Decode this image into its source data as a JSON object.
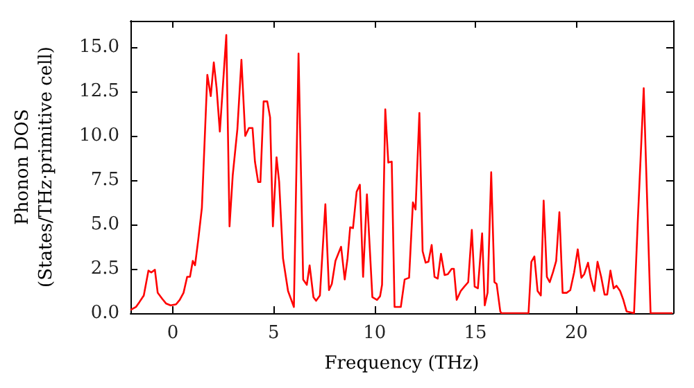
{
  "chart_data": {
    "type": "line",
    "xlabel": "Frequency (THz)",
    "ylabel": "Phonon DOS\n(States/THz·primitive cell)",
    "xlim": [
      -2.1,
      24.8
    ],
    "ylim": [
      0,
      16.5
    ],
    "xticks": [
      0,
      5,
      10,
      15,
      20
    ],
    "yticks": [
      {
        "value": 0,
        "label": "0.0"
      },
      {
        "value": 2.5,
        "label": "2.5"
      },
      {
        "value": 5,
        "label": "5.0"
      },
      {
        "value": 7.5,
        "label": "7.5"
      },
      {
        "value": 10,
        "label": "10.0"
      },
      {
        "value": 12.5,
        "label": "12.5"
      },
      {
        "value": 15,
        "label": "15.0"
      }
    ],
    "grid": false,
    "line_style": "solid",
    "marker": "none",
    "series": [
      {
        "color": "#ff0000",
        "x": [
          -2.1,
          -1.82,
          -1.66,
          -1.44,
          -1.21,
          -1.07,
          -0.89,
          -0.75,
          -0.52,
          -0.34,
          -0.11,
          0.16,
          0.34,
          0.53,
          0.71,
          0.85,
          0.99,
          1.1,
          1.26,
          1.44,
          1.71,
          1.88,
          2.03,
          2.17,
          2.33,
          2.65,
          2.81,
          2.97,
          3.2,
          3.4,
          3.59,
          3.77,
          3.95,
          4.07,
          4.23,
          4.34,
          4.5,
          4.68,
          4.82,
          4.96,
          5.14,
          5.27,
          5.46,
          5.71,
          6.0,
          6.23,
          6.46,
          6.64,
          6.78,
          6.97,
          7.1,
          7.29,
          7.56,
          7.74,
          7.88,
          8.06,
          8.34,
          8.52,
          8.66,
          8.79,
          8.93,
          9.11,
          9.27,
          9.43,
          9.62,
          9.89,
          10.12,
          10.27,
          10.37,
          10.53,
          10.68,
          10.85,
          10.99,
          11.3,
          11.49,
          11.71,
          11.9,
          12.03,
          12.22,
          12.38,
          12.53,
          12.67,
          12.83,
          12.97,
          13.13,
          13.29,
          13.47,
          13.63,
          13.82,
          13.93,
          14.07,
          14.27,
          14.45,
          14.64,
          14.82,
          14.96,
          15.12,
          15.33,
          15.46,
          15.6,
          15.78,
          15.94,
          16.05,
          16.23,
          16.28,
          17.63,
          17.77,
          17.92,
          18.08,
          18.24,
          18.38,
          18.54,
          18.68,
          18.84,
          19.0,
          19.16,
          19.32,
          19.52,
          19.7,
          19.89,
          20.07,
          20.25,
          20.39,
          20.58,
          20.71,
          20.89,
          21.05,
          21.23,
          21.4,
          21.53,
          21.69,
          21.85,
          21.99,
          22.17,
          22.33,
          22.49,
          22.86,
          23.04,
          23.34,
          23.68,
          24.77
        ],
        "values": [
          0.18,
          0.36,
          0.62,
          1.0,
          2.4,
          2.3,
          2.45,
          1.15,
          0.8,
          0.55,
          0.44,
          0.5,
          0.75,
          1.15,
          2.05,
          2.05,
          2.95,
          2.7,
          4.15,
          5.95,
          13.45,
          12.25,
          14.15,
          12.7,
          10.25,
          15.7,
          4.9,
          7.8,
          10.4,
          14.3,
          10.0,
          10.45,
          10.45,
          8.55,
          7.4,
          7.4,
          11.95,
          11.95,
          11.05,
          4.9,
          8.8,
          7.4,
          3.1,
          1.25,
          0.35,
          14.65,
          1.9,
          1.6,
          2.7,
          0.9,
          0.7,
          1.0,
          6.15,
          1.3,
          1.65,
          2.95,
          3.75,
          1.9,
          3.1,
          4.85,
          4.8,
          6.85,
          7.25,
          2.05,
          6.7,
          0.9,
          0.75,
          0.95,
          1.6,
          11.5,
          8.5,
          8.55,
          0.35,
          0.35,
          1.9,
          2.0,
          6.25,
          5.85,
          11.3,
          3.5,
          2.85,
          2.9,
          3.85,
          2.05,
          1.95,
          3.35,
          2.15,
          2.2,
          2.5,
          2.5,
          0.75,
          1.25,
          1.5,
          1.75,
          4.7,
          1.5,
          1.4,
          4.5,
          0.44,
          1.15,
          7.95,
          1.75,
          1.65,
          0.1,
          0,
          0,
          2.9,
          3.2,
          1.25,
          1.0,
          6.35,
          2.05,
          1.75,
          2.3,
          2.95,
          5.7,
          1.15,
          1.15,
          1.3,
          2.3,
          3.6,
          2.0,
          2.2,
          2.85,
          2.0,
          1.25,
          2.9,
          2.05,
          1.05,
          1.05,
          2.4,
          1.4,
          1.55,
          1.25,
          0.75,
          0.1,
          0,
          5.05,
          12.7,
          0,
          0
        ]
      }
    ]
  }
}
